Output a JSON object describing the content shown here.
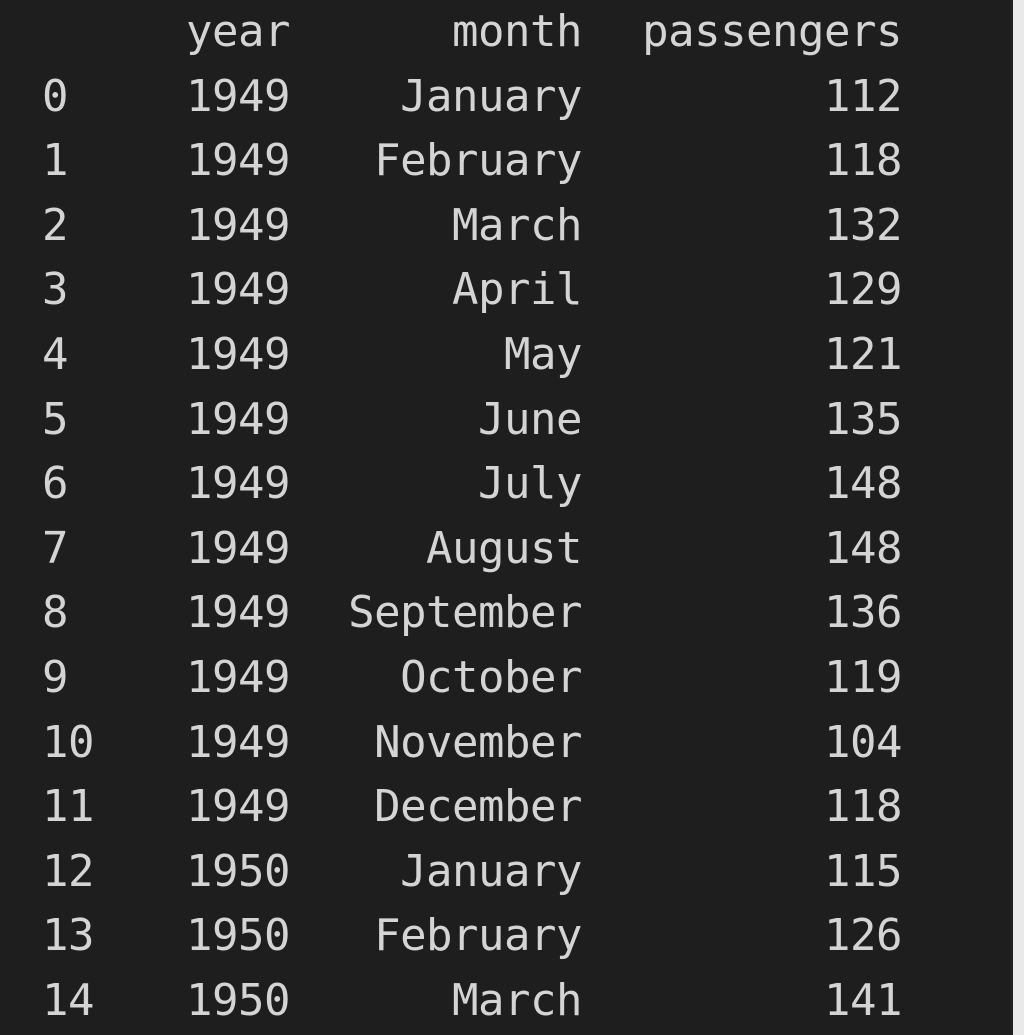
{
  "table": {
    "columns": {
      "index": "",
      "year": "year",
      "month": "month",
      "passengers": "passengers"
    },
    "rows": [
      {
        "index": "0",
        "year": "1949",
        "month": "January",
        "passengers": "112"
      },
      {
        "index": "1",
        "year": "1949",
        "month": "February",
        "passengers": "118"
      },
      {
        "index": "2",
        "year": "1949",
        "month": "March",
        "passengers": "132"
      },
      {
        "index": "3",
        "year": "1949",
        "month": "April",
        "passengers": "129"
      },
      {
        "index": "4",
        "year": "1949",
        "month": "May",
        "passengers": "121"
      },
      {
        "index": "5",
        "year": "1949",
        "month": "June",
        "passengers": "135"
      },
      {
        "index": "6",
        "year": "1949",
        "month": "July",
        "passengers": "148"
      },
      {
        "index": "7",
        "year": "1949",
        "month": "August",
        "passengers": "148"
      },
      {
        "index": "8",
        "year": "1949",
        "month": "September",
        "passengers": "136"
      },
      {
        "index": "9",
        "year": "1949",
        "month": "October",
        "passengers": "119"
      },
      {
        "index": "10",
        "year": "1949",
        "month": "November",
        "passengers": "104"
      },
      {
        "index": "11",
        "year": "1949",
        "month": "December",
        "passengers": "118"
      },
      {
        "index": "12",
        "year": "1950",
        "month": "January",
        "passengers": "115"
      },
      {
        "index": "13",
        "year": "1950",
        "month": "February",
        "passengers": "126"
      },
      {
        "index": "14",
        "year": "1950",
        "month": "March",
        "passengers": "141"
      }
    ]
  }
}
